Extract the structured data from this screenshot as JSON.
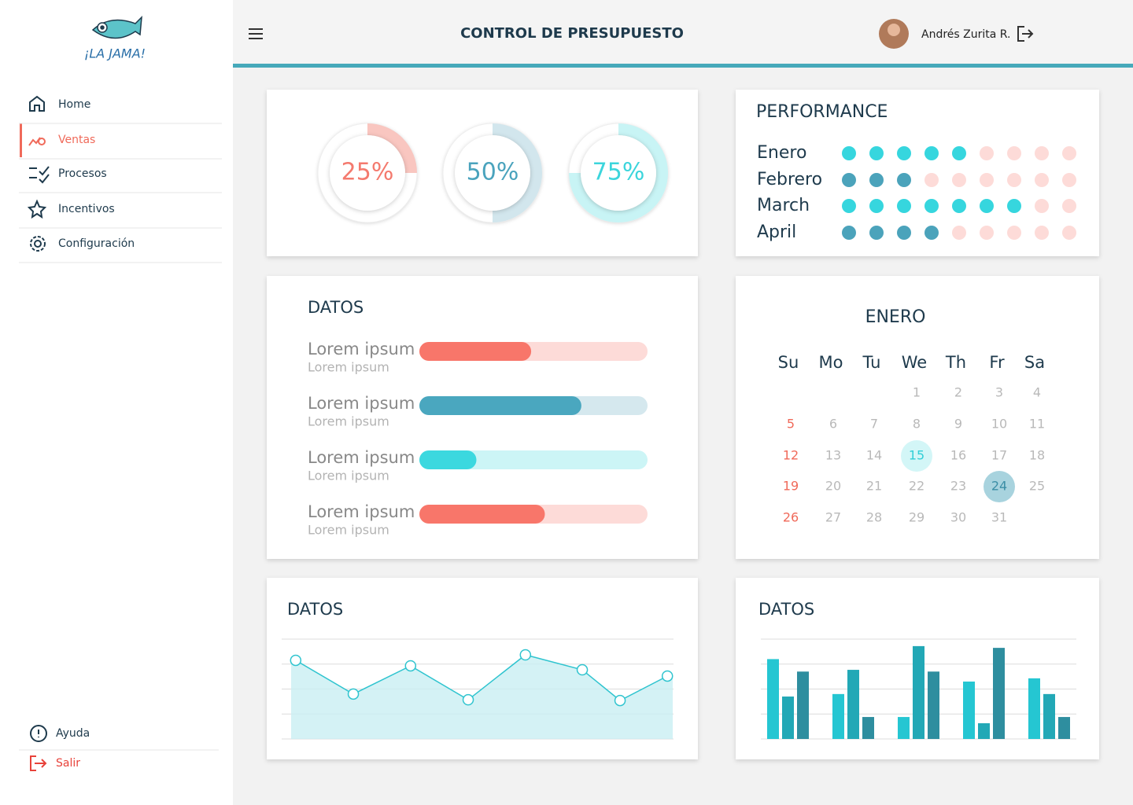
{
  "sidebar": {
    "brand": "¡LA JAMA!",
    "nav": [
      "Home",
      "Ventas",
      "Procesos",
      "Incentivos",
      "Configuración"
    ],
    "active": 1,
    "footer": [
      "Ayuda",
      "Salir"
    ]
  },
  "header": {
    "title": "CONTROL DE PRESUPUESTO",
    "user": "Andrés Zurita R."
  },
  "gauges": {
    "type": "gauge",
    "ylim": [
      0,
      100
    ],
    "values": [
      25,
      50,
      75
    ],
    "value_labels": [
      "25%",
      "50%",
      "75%"
    ],
    "colors": [
      "#f9c6c0",
      "#d2e6ed",
      "#c8f4f5"
    ],
    "text_colors": [
      "#f47a6e",
      "#4aa3bd",
      "#3cd5dc"
    ]
  },
  "performance": {
    "type": "dots",
    "title": "PERFORMANCE",
    "ylim": [
      0,
      9
    ],
    "categories": [
      "Enero",
      "Febrero",
      "March",
      "April"
    ],
    "values": [
      5,
      3,
      7,
      4
    ],
    "colors": [
      "#36d6de",
      "#4ba3bb",
      "#36d6de",
      "#4ba3bb"
    ],
    "empty_color": "#fddbd8"
  },
  "progress": {
    "type": "progress",
    "title": "DATOS",
    "ylim": [
      0,
      100
    ],
    "items": [
      {
        "label": "Lorem ipsum",
        "sublabel": "Lorem ipsum",
        "value": 49,
        "color": "#f8766a",
        "track": "#fddbd8"
      },
      {
        "label": "Lorem ipsum",
        "sublabel": "Lorem ipsum",
        "value": 71,
        "color": "#4aa7bf",
        "track": "#d5e8ee"
      },
      {
        "label": "Lorem ipsum",
        "sublabel": "Lorem ipsum",
        "value": 25,
        "color": "#3bd8df",
        "track": "#ccf5f6"
      },
      {
        "label": "Lorem ipsum",
        "sublabel": "Lorem ipsum",
        "value": 55,
        "color": "#f8766a",
        "track": "#fddbd8"
      }
    ]
  },
  "calendar": {
    "title": "ENERO",
    "weekdays": [
      "Su",
      "Mo",
      "Tu",
      "We",
      "Th",
      "Fr",
      "Sa"
    ],
    "weeks": [
      [
        null,
        null,
        null,
        1,
        2,
        3,
        4
      ],
      [
        5,
        6,
        7,
        8,
        9,
        10,
        11
      ],
      [
        12,
        13,
        14,
        15,
        16,
        17,
        18
      ],
      [
        19,
        20,
        21,
        22,
        23,
        24,
        25
      ],
      [
        26,
        27,
        28,
        29,
        30,
        31,
        null
      ]
    ],
    "highlights": [
      {
        "day": 15,
        "fill": "#d3f6f7",
        "color": "#32cfd7"
      },
      {
        "day": 24,
        "fill": "#a8d3de",
        "color": "#3b8ea6"
      }
    ]
  },
  "chart_data": [
    {
      "type": "line",
      "title": "DATOS",
      "x": [
        1.2,
        16.3,
        31.3,
        46.4,
        61.4,
        76.3,
        86.2,
        98.6
      ],
      "xlim": [
        0,
        100
      ],
      "values": [
        3.15,
        1.8,
        2.93,
        1.57,
        3.37,
        2.77,
        1.54,
        2.52
      ],
      "color": "#2fc4cf",
      "fill": "#c9eff2",
      "ylim": [
        0,
        4
      ],
      "yticks": [
        0,
        1,
        2,
        3,
        4
      ],
      "grid": true
    },
    {
      "type": "bar",
      "title": "DATOS",
      "categories": [
        null,
        null,
        null,
        null,
        null
      ],
      "series": [
        {
          "color": "#25c6d2",
          "values": [
            3.2,
            1.8,
            0.88,
            2.3,
            2.43
          ]
        },
        {
          "color": "#22a8b6",
          "values": [
            1.7,
            2.77,
            3.72,
            0.63,
            1.8
          ]
        },
        {
          "color": "#2e8e9f",
          "values": [
            2.7,
            0.88,
            2.7,
            3.65,
            0.88
          ]
        }
      ],
      "ylim": [
        0,
        4
      ],
      "yticks": [
        0,
        1,
        2,
        3,
        4
      ],
      "grid": true
    }
  ]
}
